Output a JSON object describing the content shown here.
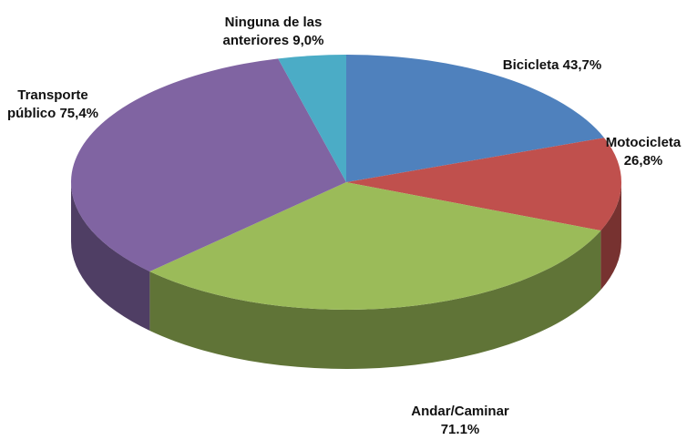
{
  "chart_data": {
    "type": "pie",
    "categories": [
      "Bicicleta",
      "Motocicleta",
      "Andar/Caminar",
      "Transporte público",
      "Ninguna de las anteriores"
    ],
    "values": [
      43.7,
      26.8,
      71.1,
      75.4,
      9.0
    ],
    "value_labels": [
      "43,7%",
      "26,8%",
      "71.1%",
      "75,4%",
      "9,0%"
    ],
    "colors": [
      "#4f81bd",
      "#c0504d",
      "#9bbb59",
      "#8064a2",
      "#4bacc6"
    ]
  }
}
